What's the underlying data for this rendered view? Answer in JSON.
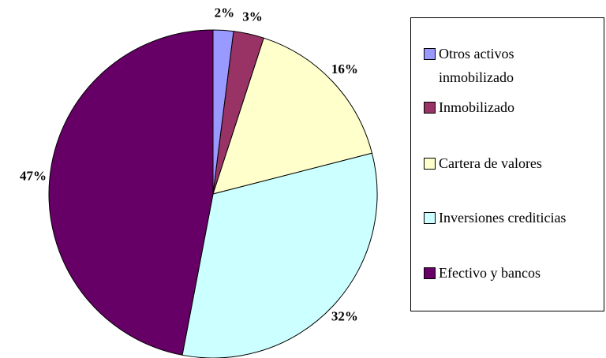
{
  "chart_data": {
    "type": "pie",
    "categories": [
      "Otros activos inmobilizado",
      "Inmobilizado",
      "Cartera de valores",
      "Inversiones crediticias",
      "Efectivo y bancos"
    ],
    "values": [
      2,
      3,
      16,
      32,
      47
    ],
    "value_labels": [
      "2%",
      "3%",
      "16%",
      "32%",
      "47%"
    ],
    "colors": [
      "#9999ff",
      "#993366",
      "#ffffcc",
      "#ccffff",
      "#660066"
    ],
    "legend": "right"
  }
}
